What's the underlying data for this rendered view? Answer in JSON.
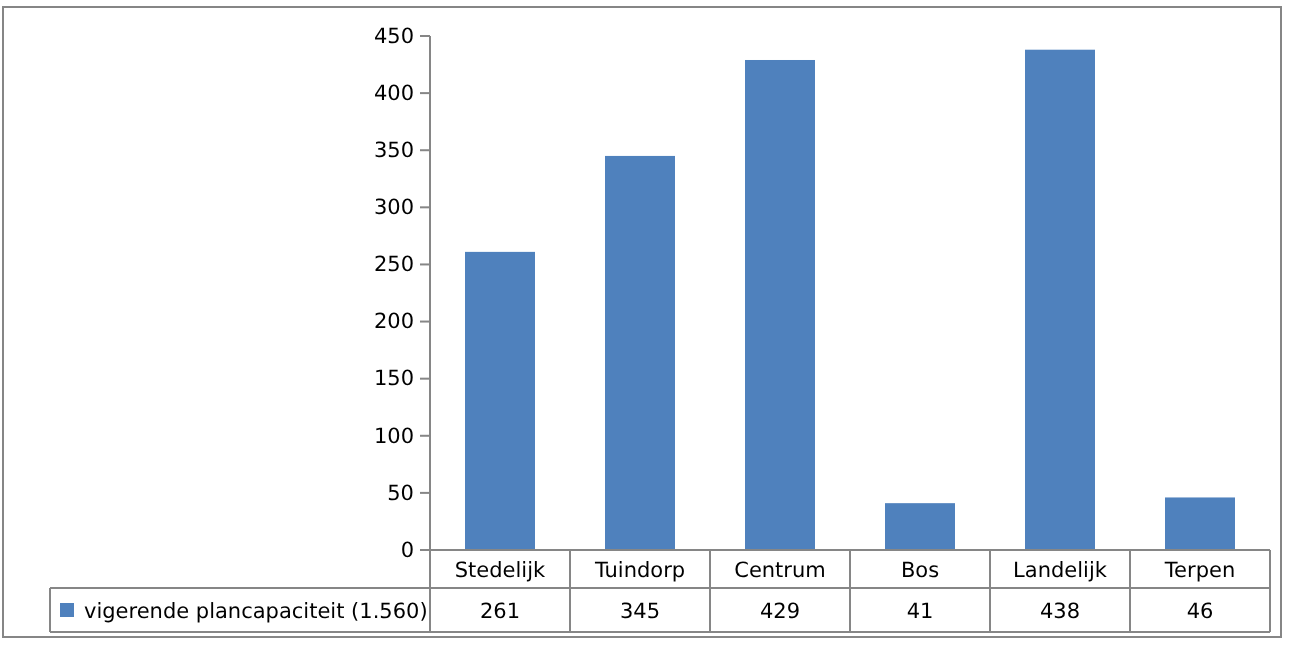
{
  "chart_data": {
    "type": "bar",
    "categories": [
      "Stedelijk",
      "Tuindorp",
      "Centrum",
      "Bos",
      "Landelijk",
      "Terpen"
    ],
    "series": [
      {
        "name": "vigerende plancapaciteit (1.560)",
        "color": "#4f81bd",
        "values": [
          261,
          345,
          429,
          41,
          438,
          46
        ]
      }
    ],
    "ylim": [
      0,
      450
    ],
    "yticks": [
      0,
      50,
      100,
      150,
      200,
      250,
      300,
      350,
      400,
      450
    ],
    "data_labels": true,
    "legend": "bottom",
    "grid": false
  }
}
